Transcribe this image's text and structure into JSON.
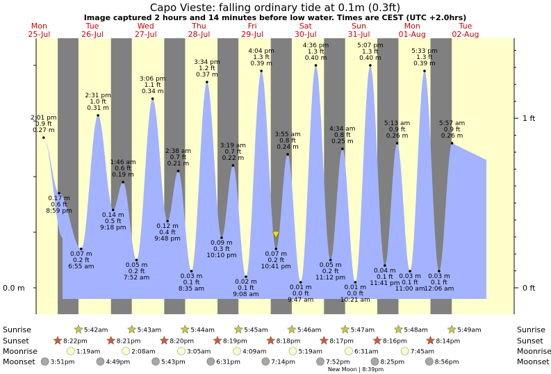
{
  "header": {
    "title": "Capo Vieste: falling  ordinary tide at 0.1m (0.3ft)",
    "subtitle": "Image captured 2 hours and 14 minutes before low water. Times are CEST (UTC +2.0hrs)"
  },
  "colors": {
    "day": "#ffffcc",
    "night": "#808080",
    "tide": "#a3b3ff",
    "day_label": "#cc0000",
    "sun": "#c8c83c",
    "sunset": "#cc5a3c",
    "moon_light": "#ffffc8",
    "moon_dark": "#a8a8a0"
  },
  "chart_data": {
    "type": "area",
    "xlabel": "",
    "ylabel": "",
    "ylim_m": [
      -0.05,
      0.43
    ],
    "y_ticks_left": [
      "0.0 m"
    ],
    "y_ticks_right": [
      "0 ft",
      "1 ft"
    ],
    "days": [
      {
        "dow": "Mon",
        "date": "25-Jul"
      },
      {
        "dow": "Tue",
        "date": "26-Jul"
      },
      {
        "dow": "Wed",
        "date": "27-Jul"
      },
      {
        "dow": "Thu",
        "date": "28-Jul"
      },
      {
        "dow": "Fri",
        "date": "29-Jul"
      },
      {
        "dow": "Sat",
        "date": "30-Jul"
      },
      {
        "dow": "Sun",
        "date": "31-Jul"
      },
      {
        "dow": "Mon",
        "date": "01-Aug"
      },
      {
        "dow": "Tue",
        "date": "02-Aug"
      }
    ],
    "tide_events": [
      {
        "type": "high",
        "time": "2:01 pm",
        "ft": "0.9 ft",
        "m": "0.27 m",
        "day": 0,
        "hour": 14.02,
        "value": 0.27
      },
      {
        "type": "low",
        "time": "8:59 pm",
        "ft": "0.6 ft",
        "m": "0.17 m",
        "day": 0,
        "hour": 20.98,
        "value": 0.17
      },
      {
        "type": "low",
        "time": "6:55 am",
        "ft": "0.2 ft",
        "m": "0.07 m",
        "day": 1,
        "hour": 6.92,
        "value": 0.07
      },
      {
        "type": "high",
        "time": "2:31 pm",
        "ft": "1.0 ft",
        "m": "0.31 m",
        "day": 1,
        "hour": 14.52,
        "value": 0.31
      },
      {
        "type": "low",
        "time": "9:18 pm",
        "ft": "0.5 ft",
        "m": "0.14 m",
        "day": 1,
        "hour": 21.3,
        "value": 0.14
      },
      {
        "type": "high",
        "time": "1:46 am",
        "ft": "0.6 ft",
        "m": "0.19 m",
        "day": 2,
        "hour": 1.77,
        "value": 0.19
      },
      {
        "type": "low",
        "time": "7:52 am",
        "ft": "0.2 ft",
        "m": "0.05 m",
        "day": 2,
        "hour": 7.87,
        "value": 0.05
      },
      {
        "type": "high",
        "time": "3:06 pm",
        "ft": "1.1 ft",
        "m": "0.34 m",
        "day": 2,
        "hour": 15.1,
        "value": 0.34
      },
      {
        "type": "low",
        "time": "9:48 pm",
        "ft": "0.4 ft",
        "m": "0.12 m",
        "day": 2,
        "hour": 21.8,
        "value": 0.12
      },
      {
        "type": "high",
        "time": "2:38 am",
        "ft": "0.7 ft",
        "m": "0.21 m",
        "day": 3,
        "hour": 2.63,
        "value": 0.21
      },
      {
        "type": "low",
        "time": "8:35 am",
        "ft": "0.1 ft",
        "m": "0.03 m",
        "day": 3,
        "hour": 8.58,
        "value": 0.03
      },
      {
        "type": "high",
        "time": "3:34 pm",
        "ft": "1.2 ft",
        "m": "0.37 m",
        "day": 3,
        "hour": 15.57,
        "value": 0.37
      },
      {
        "type": "low",
        "time": "10:10 pm",
        "ft": "0.3 ft",
        "m": "0.09 m",
        "day": 3,
        "hour": 22.17,
        "value": 0.09
      },
      {
        "type": "high",
        "time": "3:19 am",
        "ft": "0.7 ft",
        "m": "0.22 m",
        "day": 4,
        "hour": 3.32,
        "value": 0.22
      },
      {
        "type": "low",
        "time": "9:08 am",
        "ft": "0.1 ft",
        "m": "0.02 m",
        "day": 4,
        "hour": 9.13,
        "value": 0.02
      },
      {
        "type": "high",
        "time": "4:04 pm",
        "ft": "1.3 ft",
        "m": "0.39 m",
        "day": 4,
        "hour": 16.07,
        "value": 0.39
      },
      {
        "type": "low",
        "time": "10:41 pm",
        "ft": "0.2 ft",
        "m": "0.07 m",
        "day": 4,
        "hour": 22.68,
        "value": 0.07
      },
      {
        "type": "high",
        "time": "3:55 am",
        "ft": "0.8 ft",
        "m": "0.24 m",
        "day": 5,
        "hour": 3.92,
        "value": 0.24
      },
      {
        "type": "low",
        "time": "9:47 am",
        "ft": "0.0 ft",
        "m": "0.01 m",
        "day": 5,
        "hour": 9.78,
        "value": 0.01
      },
      {
        "type": "high",
        "time": "4:36 pm",
        "ft": "1.3 ft",
        "m": "0.40 m",
        "day": 5,
        "hour": 16.6,
        "value": 0.4
      },
      {
        "type": "low",
        "time": "11:12 pm",
        "ft": "0.2 ft",
        "m": "0.05 m",
        "day": 5,
        "hour": 23.2,
        "value": 0.05
      },
      {
        "type": "high",
        "time": "4:34 am",
        "ft": "0.8 ft",
        "m": "0.25 m",
        "day": 6,
        "hour": 4.57,
        "value": 0.25
      },
      {
        "type": "low",
        "time": "10:21 am",
        "ft": "0.0 ft",
        "m": "0.01 m",
        "day": 6,
        "hour": 10.35,
        "value": 0.01
      },
      {
        "type": "high",
        "time": "5:07 pm",
        "ft": "1.3 ft",
        "m": "0.40 m",
        "day": 6,
        "hour": 17.12,
        "value": 0.4
      },
      {
        "type": "low",
        "time": "11:41 pm",
        "ft": "0.1 ft",
        "m": "0.04 m",
        "day": 6,
        "hour": 23.68,
        "value": 0.04
      },
      {
        "type": "high",
        "time": "5:13 am",
        "ft": "0.9 ft",
        "m": "0.26 m",
        "day": 7,
        "hour": 5.22,
        "value": 0.26
      },
      {
        "type": "low",
        "time": "11:00 am",
        "ft": "0.1 ft",
        "m": "0.03 m",
        "day": 7,
        "hour": 11.0,
        "value": 0.03
      },
      {
        "type": "high",
        "time": "5:33 pm",
        "ft": "1.3 ft",
        "m": "0.39 m",
        "day": 7,
        "hour": 17.55,
        "value": 0.39
      },
      {
        "type": "low",
        "time": "12:06 am",
        "ft": "0.1 ft",
        "m": "0.03 m",
        "day": 8,
        "hour": 0.1,
        "value": 0.03
      },
      {
        "type": "high",
        "time": "5:57 am",
        "ft": "0.9 ft",
        "m": "0.26 m",
        "day": 8,
        "hour": 5.95,
        "value": 0.26
      }
    ],
    "rows": {
      "labels": [
        "Sunrise",
        "Sunset",
        "Moonrise",
        "Moonset"
      ],
      "sunrise": [
        "5:42am",
        "5:43am",
        "5:44am",
        "5:45am",
        "5:46am",
        "5:47am",
        "5:48am",
        "5:49am"
      ],
      "sunset": [
        "8:22pm",
        "8:21pm",
        "8:20pm",
        "8:19pm",
        "8:18pm",
        "8:17pm",
        "8:16pm",
        "8:14pm"
      ],
      "moonrise": [
        "1:19am",
        "2:08am",
        "3:05am",
        "4:09am",
        "5:19am",
        "6:31am",
        "7:45am"
      ],
      "moonset": [
        "3:51pm",
        "4:49pm",
        "5:43pm",
        "6:31pm",
        "7:14pm",
        "7:52pm",
        "8:25pm",
        "8:56pm"
      ]
    },
    "new_moon_note": "New Moon | 8:39pm"
  }
}
